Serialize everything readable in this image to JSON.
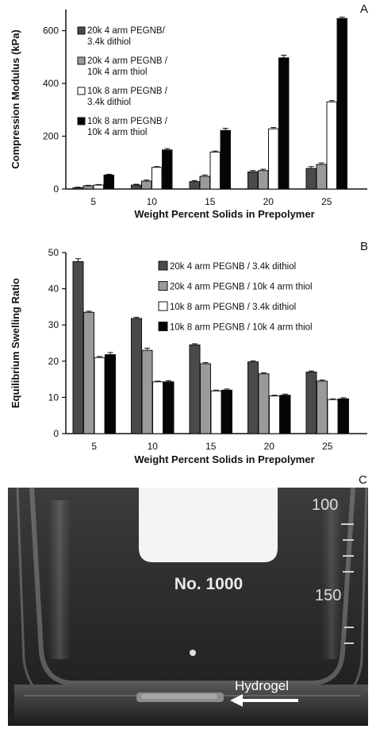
{
  "panels": {
    "A": "A",
    "B": "B",
    "C": "C"
  },
  "colors": {
    "s20k_dithiol": "#4a4a4a",
    "s20k_thiol": "#9a9a9a",
    "s10k_dithiol": "#ffffff",
    "s10k_thiol": "#050505"
  },
  "chart_data": [
    {
      "panel": "A",
      "type": "bar",
      "xlabel": "Weight Percent Solids in Prepolymer",
      "ylabel": "Compression Modulus (kPa)",
      "ylim": [
        0,
        680
      ],
      "yticks": [
        0,
        200,
        400,
        600
      ],
      "grid": false,
      "legend_position": "top-left",
      "categories": [
        "5",
        "10",
        "15",
        "20",
        "25"
      ],
      "series": [
        {
          "name": "20k 4 arm PEGNB/\n3.4k dithiol",
          "values": [
            5,
            15,
            28,
            65,
            78
          ],
          "errors": [
            2,
            3,
            4,
            5,
            7
          ]
        },
        {
          "name": "20k 4 arm PEGNB /\n10k 4 arm thiol",
          "values": [
            12,
            30,
            48,
            70,
            93
          ],
          "errors": [
            2,
            4,
            5,
            5,
            6
          ]
        },
        {
          "name": "10k 8 arm PEGNB /\n3.4k dithiol",
          "values": [
            15,
            82,
            140,
            228,
            330
          ],
          "errors": [
            2,
            3,
            4,
            5,
            5
          ]
        },
        {
          "name": "10k 8 arm PEGNB /\n10k 4 arm thiol",
          "values": [
            53,
            148,
            222,
            497,
            646
          ],
          "errors": [
            3,
            5,
            8,
            10,
            5
          ]
        }
      ]
    },
    {
      "panel": "B",
      "type": "bar",
      "xlabel": "Weight Percent Solids in Prepolymer",
      "ylabel": "Equilibrium Swelling Ratio",
      "ylim": [
        0,
        50
      ],
      "yticks": [
        0,
        10,
        20,
        30,
        40,
        50
      ],
      "grid": false,
      "legend_position": "top-right",
      "categories": [
        "5",
        "10",
        "15",
        "20",
        "25"
      ],
      "series": [
        {
          "name": "20k 4 arm PEGNB / 3.4k dithiol",
          "values": [
            47.5,
            31.8,
            24.5,
            19.8,
            17.0
          ],
          "errors": [
            0.8,
            0.3,
            0.3,
            0.3,
            0.3
          ]
        },
        {
          "name": "20k 4 arm PEGNB / 10k 4 arm thiol",
          "values": [
            33.5,
            23.0,
            19.3,
            16.5,
            14.5
          ],
          "errors": [
            0.3,
            0.6,
            0.3,
            0.3,
            0.3
          ]
        },
        {
          "name": "10k 8 arm PEGNB / 3.4k dithiol",
          "values": [
            21.0,
            14.3,
            11.8,
            10.4,
            9.4
          ],
          "errors": [
            0.3,
            0.2,
            0.2,
            0.2,
            0.2
          ]
        },
        {
          "name": "10k 8 arm PEGNB / 10k 4 arm thiol",
          "values": [
            21.8,
            14.3,
            12.0,
            10.6,
            9.6
          ],
          "errors": [
            0.6,
            0.3,
            0.3,
            0.3,
            0.3
          ]
        }
      ]
    }
  ],
  "photo": {
    "label_card": "No. 1000",
    "graduation_top": "100",
    "graduation_mid": "150",
    "arrow_label": "Hydrogel"
  }
}
